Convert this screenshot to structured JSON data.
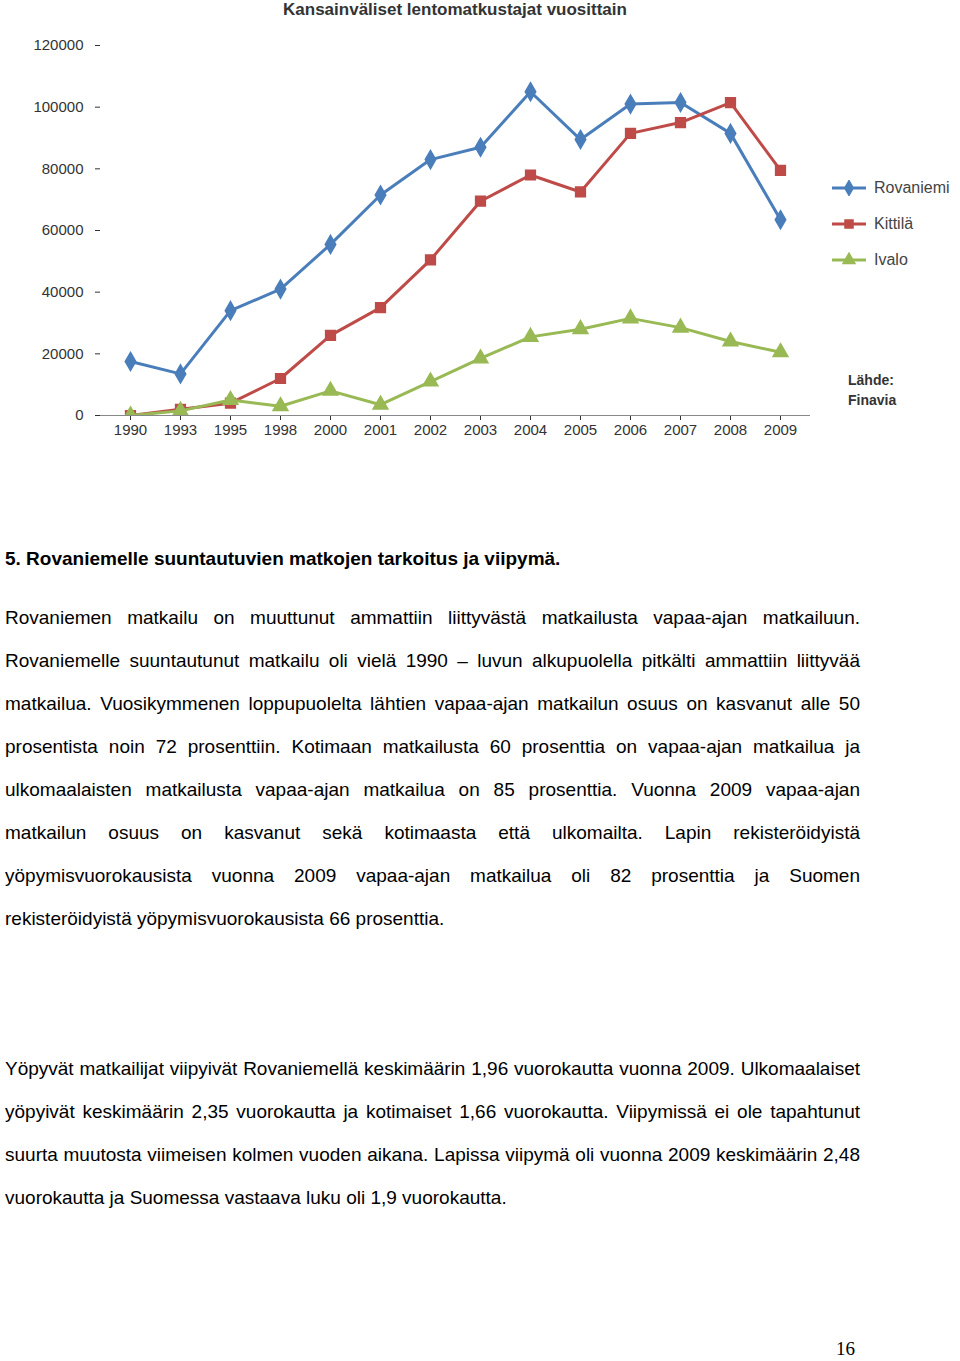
{
  "chart_data": {
    "type": "line",
    "title": "Kansainväliset lentomatkustajat vuosittain",
    "categories": [
      "1990",
      "1993",
      "1995",
      "1998",
      "2000",
      "2001",
      "2002",
      "2003",
      "2004",
      "2005",
      "2006",
      "2007",
      "2008",
      "2009"
    ],
    "series": [
      {
        "name": "Rovaniemi",
        "color": "#4a7ebb",
        "marker": "diamond",
        "values": [
          17500,
          13500,
          34000,
          41000,
          55500,
          71500,
          83000,
          87000,
          105000,
          89500,
          101000,
          101500,
          91500,
          63500
        ]
      },
      {
        "name": "Kittilä",
        "color": "#be4b48",
        "marker": "square",
        "values": [
          0,
          2000,
          4000,
          12000,
          26000,
          35000,
          50500,
          69500,
          78000,
          72500,
          91500,
          95000,
          101500,
          79500
        ]
      },
      {
        "name": "Ivalo",
        "color": "#98b954",
        "marker": "triangle",
        "values": [
          0,
          1500,
          5000,
          3000,
          8000,
          3500,
          11000,
          18500,
          25500,
          28000,
          31500,
          28500,
          24000,
          20500
        ]
      }
    ],
    "ylim": [
      0,
      120000
    ],
    "yticks": [
      0,
      20000,
      40000,
      60000,
      80000,
      100000,
      120000
    ],
    "grid": false,
    "legend": "right",
    "annotation": "Lähde: Finavia"
  },
  "document": {
    "heading": "5. Rovaniemelle suuntautuvien matkojen tarkoitus ja viipymä.",
    "paragraphs": [
      "Rovaniemen matkailu on muuttunut ammattiin liittyvästä matkailusta vapaa-ajan matkailuun. Rovaniemelle suuntautunut matkailu oli vielä 1990 – luvun alkupuolella pitkälti ammattiin liittyvää matkailua. Vuosikymmenen loppupuolelta lähtien vapaa-ajan matkailun osuus on kasvanut alle 50 prosentista noin 72 prosenttiin. Kotimaan matkailusta 60 prosenttia on vapaa-ajan matkailua ja ulkomaalaisten matkailusta vapaa-ajan matkailua on 85 prosenttia. Vuonna 2009 vapaa-ajan matkailun osuus on kasvanut sekä kotimaasta että ulkomailta. Lapin rekisteröidyistä yöpymisvuorokausista vuonna 2009 vapaa-ajan matkailua oli 82 prosenttia ja Suomen rekisteröidyistä yöpymisvuorokausista 66 prosenttia.",
      "Yöpyvät matkailijat viipyivät Rovaniemellä keskimäärin 1,96 vuorokautta vuonna 2009. Ulkomaalaiset yöpyivät keskimäärin 2,35 vuorokautta ja kotimaiset 1,66 vuorokautta. Viipymissä ei ole tapahtunut suurta muutosta viimeisen kolmen vuoden aikana. Lapissa viipymä oli vuonna 2009 keskimäärin 2,48 vuorokautta ja Suomessa vastaava luku oli 1,9 vuorokautta."
    ],
    "page_number": 16
  }
}
